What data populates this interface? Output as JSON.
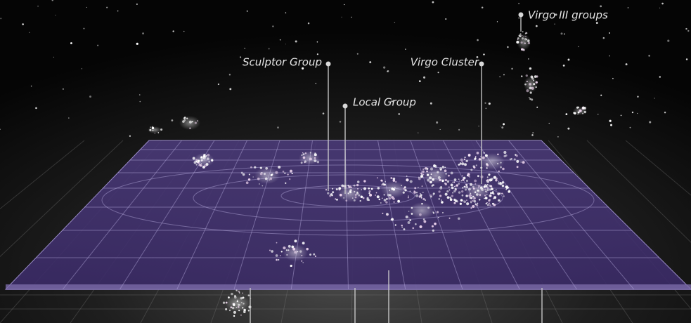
{
  "labels": [
    "Sculptor Group",
    "Local Group",
    "Virgo Cluster",
    "Virgo III groups"
  ]
}
